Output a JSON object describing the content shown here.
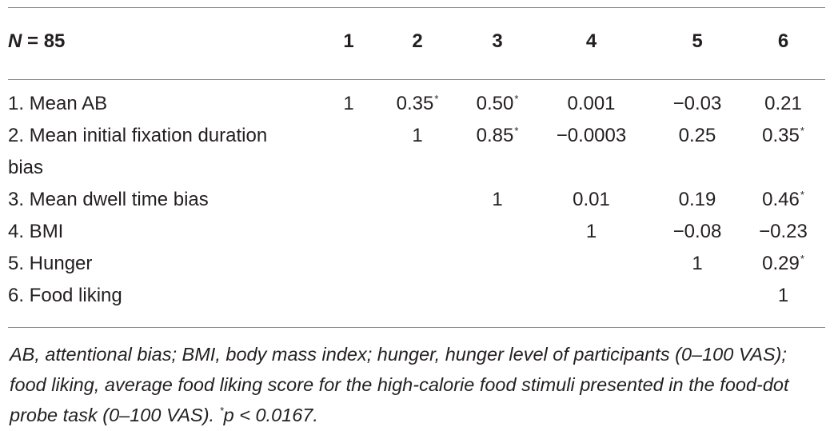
{
  "table": {
    "n_label_italic": "N",
    "n_label_rest": " = 85",
    "columns": [
      "1",
      "2",
      "3",
      "4",
      "5",
      "6"
    ],
    "significance_marker": "*",
    "rows": [
      {
        "label": "1. Mean AB",
        "cells": [
          {
            "v": "1",
            "sig": false
          },
          {
            "v": "0.35",
            "sig": true
          },
          {
            "v": "0.50",
            "sig": true
          },
          {
            "v": "0.001",
            "sig": false
          },
          {
            "v": "−0.03",
            "sig": false
          },
          {
            "v": "0.21",
            "sig": false
          }
        ]
      },
      {
        "label": "2. Mean initial fixation duration",
        "label_cont": "bias",
        "cells": [
          {
            "v": "",
            "sig": false
          },
          {
            "v": "1",
            "sig": false
          },
          {
            "v": "0.85",
            "sig": true
          },
          {
            "v": "−0.0003",
            "sig": false
          },
          {
            "v": "0.25",
            "sig": false
          },
          {
            "v": "0.35",
            "sig": true
          }
        ]
      },
      {
        "label": "3. Mean dwell time bias",
        "cells": [
          {
            "v": "",
            "sig": false
          },
          {
            "v": "",
            "sig": false
          },
          {
            "v": "1",
            "sig": false
          },
          {
            "v": "0.01",
            "sig": false
          },
          {
            "v": "0.19",
            "sig": false
          },
          {
            "v": "0.46",
            "sig": true
          }
        ]
      },
      {
        "label": "4. BMI",
        "cells": [
          {
            "v": "",
            "sig": false
          },
          {
            "v": "",
            "sig": false
          },
          {
            "v": "",
            "sig": false
          },
          {
            "v": "1",
            "sig": false
          },
          {
            "v": "−0.08",
            "sig": false
          },
          {
            "v": "−0.23",
            "sig": false
          }
        ]
      },
      {
        "label": "5. Hunger",
        "cells": [
          {
            "v": "",
            "sig": false
          },
          {
            "v": "",
            "sig": false
          },
          {
            "v": "",
            "sig": false
          },
          {
            "v": "",
            "sig": false
          },
          {
            "v": "1",
            "sig": false
          },
          {
            "v": "0.29",
            "sig": true
          }
        ]
      },
      {
        "label": "6. Food liking",
        "cells": [
          {
            "v": "",
            "sig": false
          },
          {
            "v": "",
            "sig": false
          },
          {
            "v": "",
            "sig": false
          },
          {
            "v": "",
            "sig": false
          },
          {
            "v": "",
            "sig": false
          },
          {
            "v": "1",
            "sig": false
          }
        ]
      }
    ]
  },
  "footnote": {
    "text": "AB, attentional bias; BMI, body mass index; hunger, hunger level of participants (0–100 VAS); food liking, average food liking score for the high-calorie food stimuli presented in the food-dot probe task (0–100 VAS). ",
    "sig_marker": "*",
    "sig_text": "p < 0.0167."
  }
}
